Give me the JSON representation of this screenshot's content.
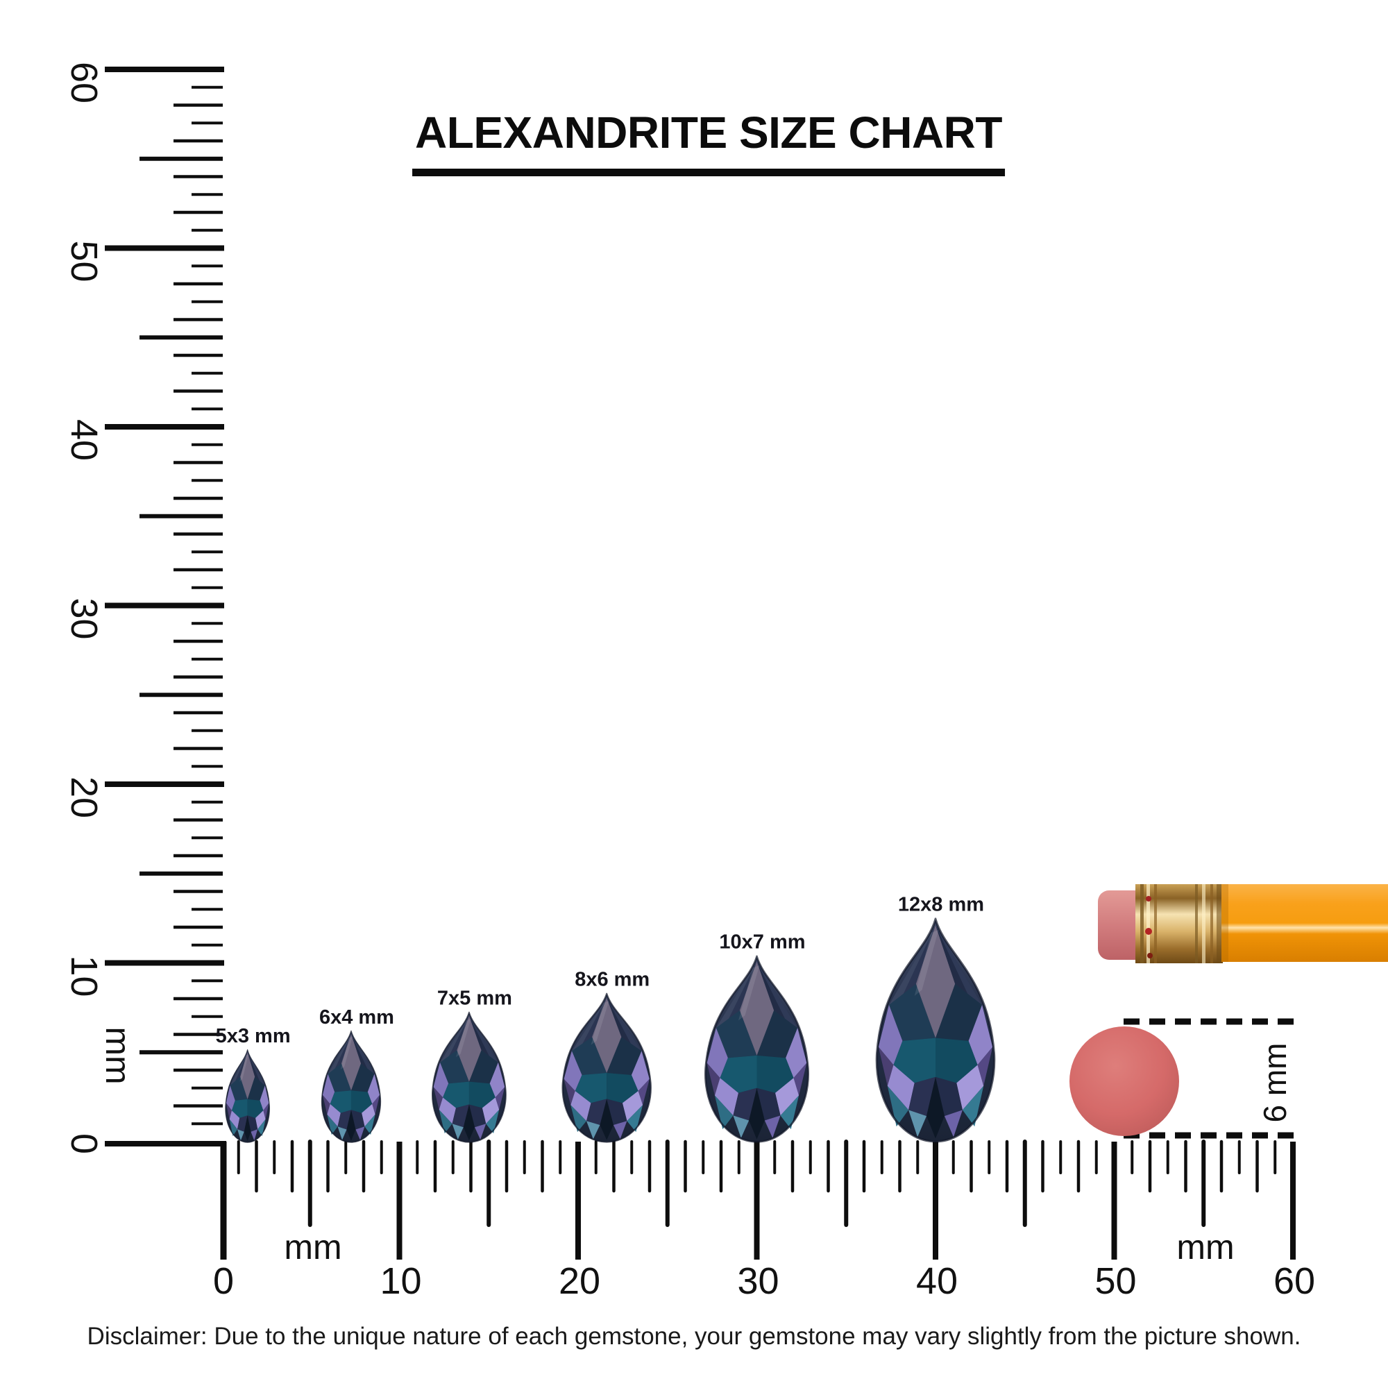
{
  "title": {
    "text": "ALEXANDRITE SIZE CHART"
  },
  "chart_data": {
    "type": "table",
    "title": "ALEXANDRITE SIZE CHART",
    "unit": "mm",
    "shape": "pear-cut alexandrite gemstones",
    "categories": [
      "5x3 mm",
      "6x4 mm",
      "7x5 mm",
      "8x6 mm",
      "10x7 mm",
      "12x8 mm"
    ],
    "series": [
      {
        "name": "length_mm",
        "values": [
          5,
          6,
          7,
          8,
          10,
          12
        ]
      },
      {
        "name": "width_mm",
        "values": [
          3,
          4,
          5,
          6,
          7,
          8
        ]
      }
    ],
    "rulers": {
      "horizontal_range_mm": [
        0,
        60
      ],
      "vertical_range_mm": [
        0,
        60
      ]
    },
    "reference_scale": "6 mm eraser dot and pencil for scale"
  },
  "gems": [
    {
      "label": "5x3 mm",
      "length_mm": 5,
      "width_mm": 3,
      "center_mm": 1.5
    },
    {
      "label": "6x4 mm",
      "length_mm": 6,
      "width_mm": 4,
      "center_mm": 7.3
    },
    {
      "label": "7x5 mm",
      "length_mm": 7,
      "width_mm": 5,
      "center_mm": 13.9
    },
    {
      "label": "8x6 mm",
      "length_mm": 8,
      "width_mm": 6,
      "center_mm": 21.6
    },
    {
      "label": "10x7 mm",
      "length_mm": 10,
      "width_mm": 7,
      "center_mm": 30
    },
    {
      "label": "12x8 mm",
      "length_mm": 12,
      "width_mm": 8,
      "center_mm": 40
    }
  ],
  "rulers": {
    "vertical": {
      "unit": "mm",
      "min": 0,
      "max": 60,
      "numbers": [
        "60",
        "50",
        "40",
        "30",
        "20",
        "10",
        "0"
      ]
    },
    "horizontal": {
      "unit": "mm",
      "min": 0,
      "max": 60,
      "numbers": [
        "0",
        "10",
        "20",
        "30",
        "40",
        "50",
        "60"
      ]
    }
  },
  "reference_objects": {
    "eraser_dot_label": "6 mm",
    "eraser_dot_diameter_mm": 6
  },
  "disclaimer": "Disclaimer: Due to the unique nature of each gemstone, your gemstone may vary slightly from the picture shown.",
  "colors": {
    "ruler": "#0d0d0d",
    "ink": "#111111",
    "gem-dark": "#1a2233",
    "gem-mid": "#2a3750",
    "gem-table": "#6f6880",
    "gem-teal": "#17586e",
    "gem-violet": "#8176ba",
    "gem-lavender": "#a599da",
    "pencil-body": "#f9a11b",
    "pencil-shadow": "#d97f00",
    "pencil-highlight": "#ffe3ab",
    "ferrule-light": "#f6e3b2",
    "ferrule-mid": "#c9a055",
    "ferrule-dark": "#6e4a16",
    "eraser-pink": "#e39a96",
    "eraser-dark": "#bd6266",
    "dot-fill": "#d56a69",
    "dot-light": "#de7e7b",
    "dot-dark": "#ba5958",
    "rivet-red": "#a32222"
  }
}
